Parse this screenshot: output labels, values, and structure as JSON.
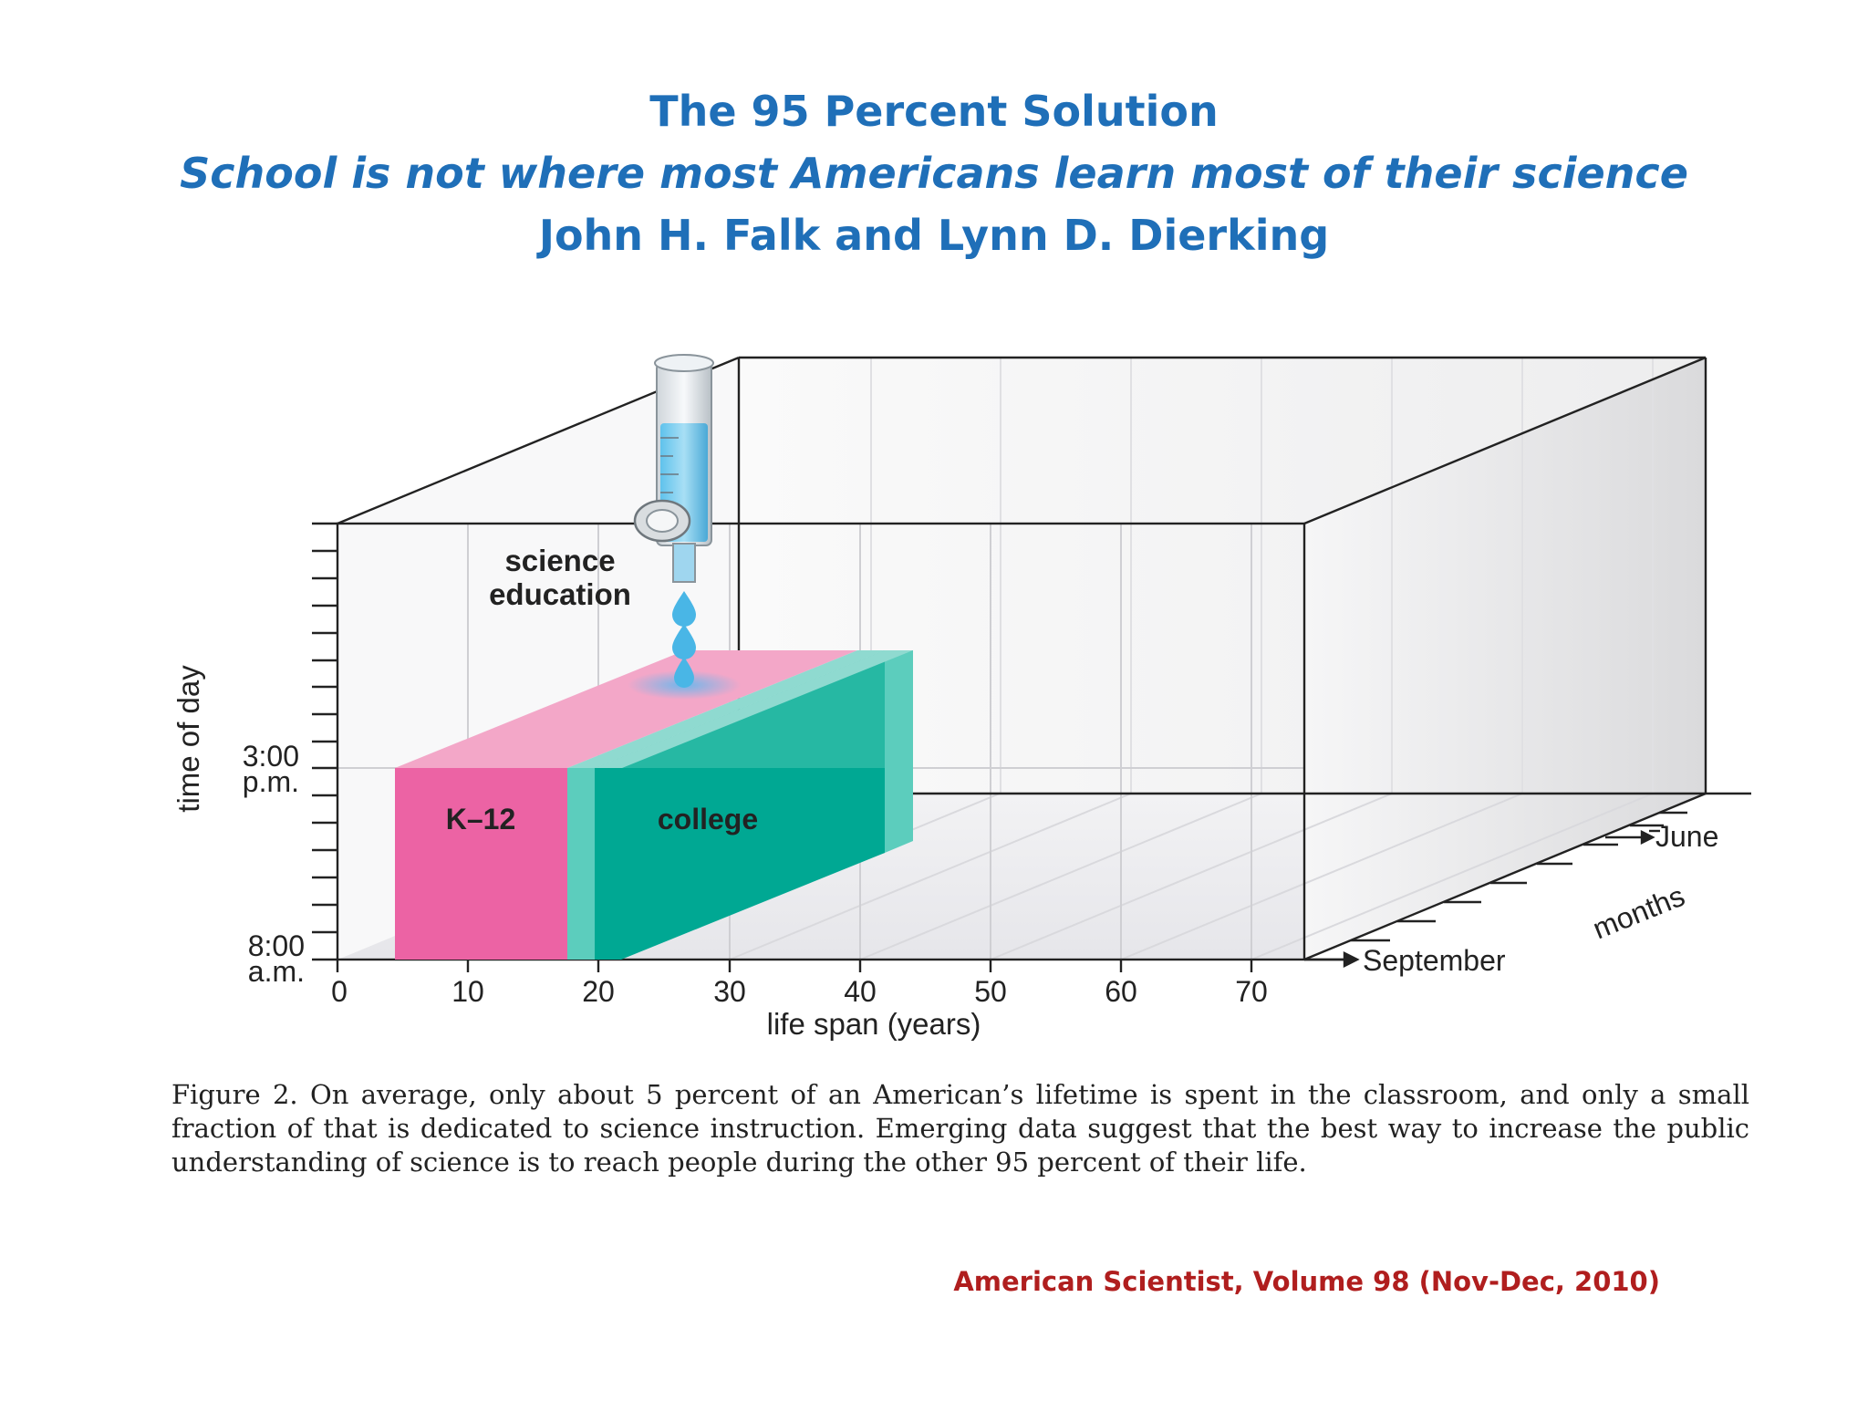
{
  "header": {
    "title": "The 95 Percent Solution",
    "subtitle": "School is not where most Americans learn most of their science",
    "authors": "John H. Falk and Lynn D. Dierking"
  },
  "diagram": {
    "y_axis_label": "time of day",
    "y_tick_top": [
      "3:00",
      "p.m."
    ],
    "y_tick_bottom": [
      "8:00",
      "a.m."
    ],
    "x_axis_label": "life span (years)",
    "x_ticks": [
      "0",
      "10",
      "20",
      "30",
      "40",
      "50",
      "60",
      "70"
    ],
    "z_axis_label": "months",
    "z_tick_back": "June",
    "z_tick_front": "September",
    "funnel_label": [
      "science",
      "education"
    ],
    "block_k12": "K–12",
    "block_college": "college",
    "colors": {
      "k12": "#ec63a4",
      "k12_top": "#f3a7c8",
      "college": "#00a893",
      "college_light": "#5ccdbd",
      "drop": "#49b6e6"
    }
  },
  "caption": "Figure 2. On average, only about 5 percent of an American’s lifetime is spent in the classroom, and only a small fraction of that is dedicated to science instruction. Emerging data suggest that the best way to increase the public understanding of science is to reach people during the other 95 percent of their life.",
  "source": "American Scientist, Volume 98 (Nov-Dec, 2010)"
}
